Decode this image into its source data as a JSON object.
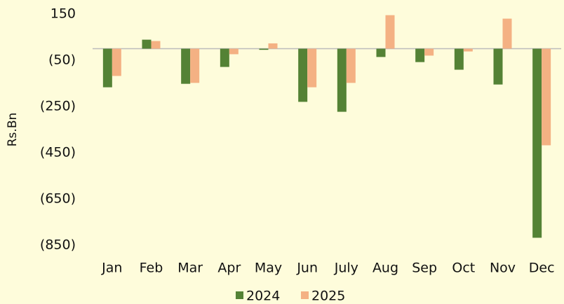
{
  "chart_data": {
    "type": "bar",
    "y_label": "Rs.Bn",
    "categories": [
      "Jan",
      "Feb",
      "Mar",
      "Apr",
      "May",
      "Jun",
      "July",
      "Aug",
      "Sep",
      "Oct",
      "Nov",
      "Dec"
    ],
    "series": [
      {
        "name": "2024",
        "color": "#548235",
        "values": [
          -167,
          39,
          -152,
          -79,
          -5,
          -230,
          -273,
          -36,
          -58,
          -91,
          -155,
          -818
        ]
      },
      {
        "name": "2025",
        "color": "#f4b183",
        "values": [
          -118,
          33,
          -148,
          -24,
          23,
          -167,
          -148,
          145,
          -30,
          -12,
          130,
          -418
        ]
      }
    ],
    "ylim": [
      -850,
      150
    ],
    "yticks": [
      150,
      {
        "value": -50,
        "label": "(50)"
      },
      {
        "value": -250,
        "label": "(250)"
      },
      {
        "value": -450,
        "label": "(450)"
      },
      {
        "value": -650,
        "label": "(650)"
      },
      {
        "value": -850,
        "label": "(850)"
      }
    ],
    "grid": false,
    "legend": "bottom"
  }
}
